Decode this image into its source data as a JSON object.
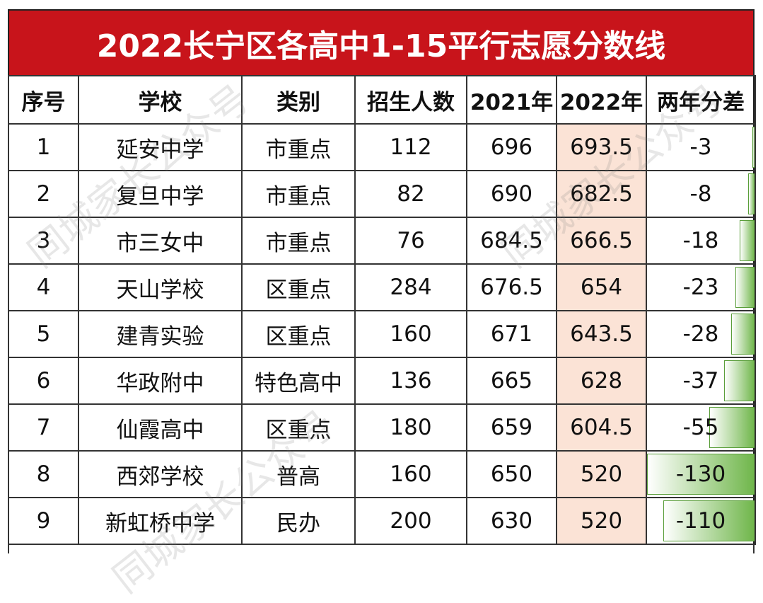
{
  "title": "2022长宁区各高中1-15平行志愿分数线",
  "columns": [
    "序号",
    "学校",
    "类别",
    "招生人数",
    "2021年",
    "2022年",
    "两年分差"
  ],
  "rows": [
    {
      "no": "1",
      "school": "延安中学",
      "type": "市重点",
      "quota": "112",
      "y2021": "696",
      "y2022": "693.5",
      "diff": "-3",
      "diff_value": -3
    },
    {
      "no": "2",
      "school": "复旦中学",
      "type": "市重点",
      "quota": "82",
      "y2021": "690",
      "y2022": "682.5",
      "diff": "-8",
      "diff_value": -8
    },
    {
      "no": "3",
      "school": "市三女中",
      "type": "市重点",
      "quota": "76",
      "y2021": "684.5",
      "y2022": "666.5",
      "diff": "-18",
      "diff_value": -18
    },
    {
      "no": "4",
      "school": "天山学校",
      "type": "区重点",
      "quota": "284",
      "y2021": "676.5",
      "y2022": "654",
      "diff": "-23",
      "diff_value": -23
    },
    {
      "no": "5",
      "school": "建青实验",
      "type": "区重点",
      "quota": "160",
      "y2021": "671",
      "y2022": "643.5",
      "diff": "-28",
      "diff_value": -28
    },
    {
      "no": "6",
      "school": "华政附中",
      "type": "特色高中",
      "quota": "136",
      "y2021": "665",
      "y2022": "628",
      "diff": "-37",
      "diff_value": -37
    },
    {
      "no": "7",
      "school": "仙霞高中",
      "type": "区重点",
      "quota": "180",
      "y2021": "659",
      "y2022": "604.5",
      "diff": "-55",
      "diff_value": -55
    },
    {
      "no": "8",
      "school": "西郊学校",
      "type": "普高",
      "quota": "160",
      "y2021": "650",
      "y2022": "520",
      "diff": "-130",
      "diff_value": -130
    },
    {
      "no": "9",
      "school": "新虹桥中学",
      "type": "民办",
      "quota": "200",
      "y2021": "630",
      "y2022": "520",
      "diff": "-110",
      "diff_value": -110
    }
  ],
  "watermark": "同城家长公众号",
  "colors": {
    "title_bg": "#c8141b",
    "highlight_col": "#fbe3d6",
    "bar": "#6fb64a"
  }
}
